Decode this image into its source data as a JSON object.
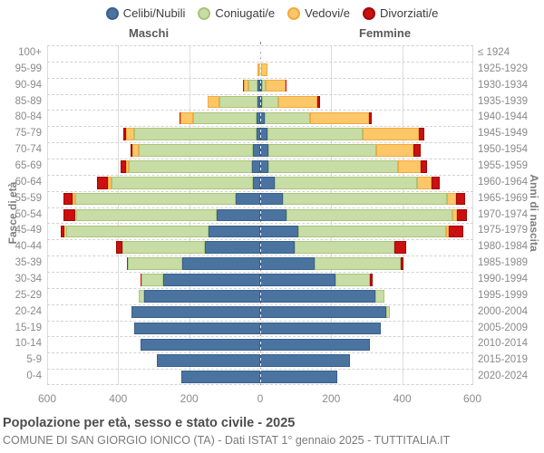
{
  "legend": {
    "items": [
      {
        "key": "celibi",
        "label": "Celibi/Nubili",
        "color": "#4a73a0",
        "border": "#39618c"
      },
      {
        "key": "coniugati",
        "label": "Coniugati/e",
        "color": "#c8dca6",
        "border": "#a9c57b"
      },
      {
        "key": "vedovi",
        "label": "Vedovi/e",
        "color": "#fbc768",
        "border": "#f3a93e"
      },
      {
        "key": "divorziati",
        "label": "Divorziati/e",
        "color": "#cc0f0f",
        "border": "#9d0b0b"
      }
    ]
  },
  "headers": {
    "left": "Maschi",
    "right": "Femmine"
  },
  "axes": {
    "left_title": "Fasce di età",
    "right_title": "Anni di nascita",
    "x_ticks": [
      "600",
      "400",
      "200",
      "0",
      "200",
      "400",
      "600"
    ]
  },
  "footer": {
    "title": "Popolazione per età, sesso e stato civile - 2025",
    "subtitle": "COMUNE DI SAN GIORGIO IONICO (TA) - Dati ISTAT 1° gennaio 2025 - TUTTITALIA.IT"
  },
  "chart_data": {
    "type": "bar",
    "subtype": "population_pyramid",
    "title": "Popolazione per età, sesso e stato civile - 2025",
    "source": "COMUNE DI SAN GIORGIO IONICO (TA) - Dati ISTAT 1° gennaio 2025 - TUTTITALIA.IT",
    "x_axis": {
      "label_left": "Maschi",
      "label_right": "Femmine",
      "ticks": [
        600,
        400,
        200,
        0,
        200,
        400,
        600
      ],
      "max_per_side": 600
    },
    "y_axis_left_label": "Fasce di età",
    "y_axis_right_label": "Anni di nascita",
    "legend_position": "top",
    "grid": true,
    "age_groups": [
      "100+",
      "95-99",
      "90-94",
      "85-89",
      "80-84",
      "75-79",
      "70-74",
      "65-69",
      "60-64",
      "55-59",
      "50-54",
      "45-49",
      "40-44",
      "35-39",
      "30-34",
      "25-29",
      "20-24",
      "15-19",
      "10-14",
      "5-9",
      "0-4"
    ],
    "birth_years": [
      "≤ 1924",
      "1925-1929",
      "1930-1934",
      "1935-1939",
      "1940-1944",
      "1945-1949",
      "1950-1954",
      "1955-1959",
      "1960-1964",
      "1965-1969",
      "1970-1974",
      "1975-1979",
      "1980-1984",
      "1985-1989",
      "1990-1994",
      "1995-1999",
      "2000-2004",
      "2005-2009",
      "2010-2014",
      "2015-2019",
      "2020-2024"
    ],
    "statuses": [
      "Celibi/Nubili",
      "Coniugati/e",
      "Vedovi/e",
      "Divorziati/e"
    ],
    "males": {
      "celibi": [
        0,
        0,
        7,
        8,
        11,
        11,
        20,
        22,
        20,
        69,
        122,
        146,
        156,
        220,
        274,
        326,
        363,
        356,
        336,
        291,
        222
      ],
      "coniugati": [
        0,
        2,
        26,
        106,
        179,
        343,
        322,
        349,
        398,
        452,
        396,
        400,
        233,
        152,
        60,
        15,
        0,
        0,
        0,
        0,
        0
      ],
      "vedovi": [
        0,
        6,
        13,
        34,
        34,
        23,
        17,
        7,
        12,
        7,
        4,
        5,
        0,
        0,
        1,
        0,
        0,
        0,
        0,
        0,
        0
      ],
      "divorziati": [
        0,
        0,
        2,
        0,
        4,
        9,
        7,
        15,
        30,
        27,
        33,
        12,
        17,
        4,
        2,
        2,
        0,
        0,
        0,
        0,
        0
      ]
    },
    "females": {
      "celibi": [
        0,
        0,
        6,
        6,
        12,
        20,
        23,
        23,
        42,
        63,
        74,
        106,
        97,
        154,
        212,
        325,
        355,
        340,
        310,
        252,
        216
      ],
      "coniugati": [
        0,
        3,
        10,
        44,
        128,
        268,
        304,
        364,
        400,
        464,
        468,
        418,
        281,
        241,
        98,
        26,
        10,
        0,
        0,
        0,
        0
      ],
      "vedovi": [
        0,
        18,
        55,
        111,
        166,
        158,
        105,
        64,
        40,
        24,
        13,
        7,
        0,
        0,
        0,
        0,
        0,
        0,
        0,
        0,
        0
      ],
      "divorziati": [
        0,
        0,
        4,
        7,
        7,
        15,
        20,
        19,
        24,
        26,
        26,
        41,
        32,
        9,
        6,
        0,
        0,
        0,
        0,
        0,
        0
      ]
    }
  }
}
